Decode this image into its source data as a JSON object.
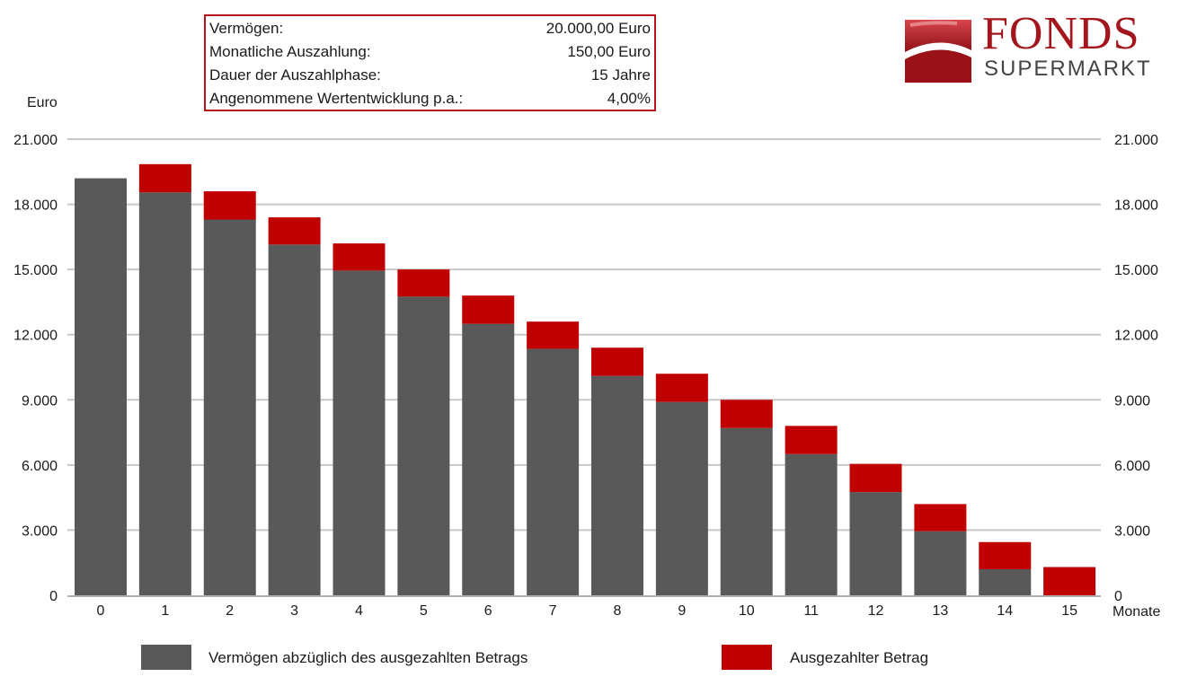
{
  "info": {
    "rows": [
      {
        "label": "Vermögen:",
        "value": "20.000,00 Euro"
      },
      {
        "label": "Monatliche Auszahlung:",
        "value": "150,00 Euro"
      },
      {
        "label": "Dauer der Auszahlphase:",
        "value": "15 Jahre"
      },
      {
        "label": "Angenommene Wertentwicklung p.a.:",
        "value": "4,00%"
      }
    ]
  },
  "logo": {
    "line1": "FONDS",
    "line2": "SUPERMARKT"
  },
  "colors": {
    "remaining": "#595959",
    "paid": "#c00000",
    "grid": "#c8c8c8",
    "brand": "#a3161e"
  },
  "chart_data": {
    "type": "bar",
    "stacked": true,
    "ylabel": "Euro",
    "xlabel": "Monate",
    "ylim": [
      0,
      21000
    ],
    "yticks": [
      0,
      3000,
      6000,
      9000,
      12000,
      15000,
      18000,
      21000
    ],
    "ytick_labels": [
      "0",
      "3.000",
      "6.000",
      "9.000",
      "12.000",
      "15.000",
      "18.000",
      "21.000"
    ],
    "categories": [
      "0",
      "1",
      "2",
      "3",
      "4",
      "5",
      "6",
      "7",
      "8",
      "9",
      "10",
      "11",
      "12",
      "13",
      "14",
      "15"
    ],
    "series": [
      {
        "name": "Vermögen abzüglich des ausgezahlten Betrags",
        "values": [
          19200,
          18550,
          17300,
          16150,
          14950,
          13750,
          12500,
          11350,
          10100,
          8900,
          7700,
          6500,
          4750,
          2950,
          1200,
          0
        ]
      },
      {
        "name": "Ausgezahlter Betrag",
        "values": [
          0,
          1300,
          1300,
          1250,
          1250,
          1250,
          1300,
          1250,
          1300,
          1300,
          1300,
          1300,
          1300,
          1250,
          1250,
          1300
        ]
      }
    ],
    "grid": true,
    "legend_position": "bottom"
  }
}
